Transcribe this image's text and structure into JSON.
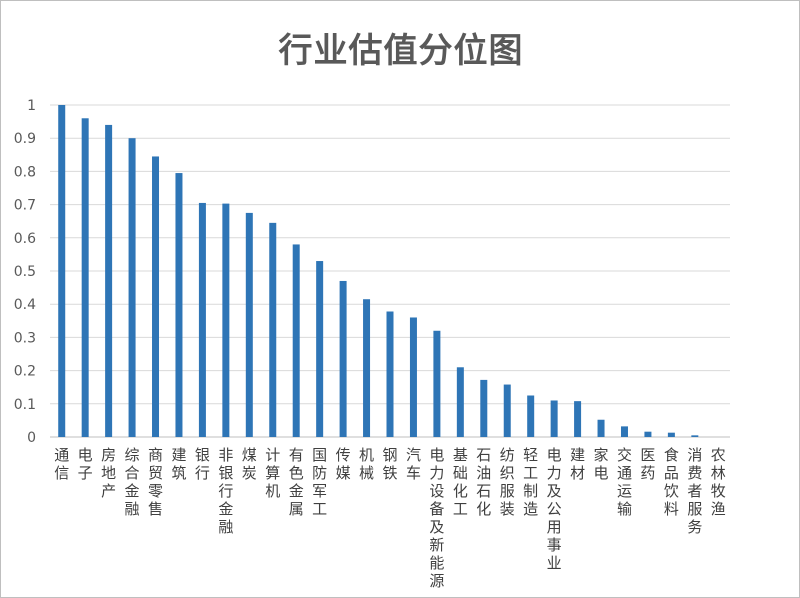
{
  "chart_data": {
    "type": "bar",
    "title": "行业估值分位图",
    "xlabel": "",
    "ylabel": "",
    "ylim": [
      0,
      1
    ],
    "yticks": [
      "0",
      "0.1",
      "0.2",
      "0.3",
      "0.4",
      "0.5",
      "0.6",
      "0.7",
      "0.8",
      "0.9",
      "1"
    ],
    "grid": true,
    "bar_color": "#2E75B6",
    "categories": [
      "通信",
      "电子",
      "房地产",
      "综合金融",
      "商贸零售",
      "建筑",
      "银行",
      "非银行金融",
      "煤炭",
      "计算机",
      "有色金属",
      "国防军工",
      "传媒",
      "机械",
      "钢铁",
      "汽车",
      "电力设备及新能源",
      "基础化工",
      "石油石化",
      "纺织服装",
      "轻工制造",
      "电力及公用事业",
      "建材",
      "家电",
      "交通运输",
      "医药",
      "食品饮料",
      "消费者服务",
      "农林牧渔"
    ],
    "values": [
      1.0,
      0.96,
      0.94,
      0.9,
      0.845,
      0.795,
      0.705,
      0.703,
      0.675,
      0.645,
      0.58,
      0.53,
      0.47,
      0.415,
      0.378,
      0.36,
      0.32,
      0.21,
      0.172,
      0.158,
      0.125,
      0.11,
      0.108,
      0.052,
      0.032,
      0.016,
      0.013,
      0.005,
      0.0
    ]
  }
}
